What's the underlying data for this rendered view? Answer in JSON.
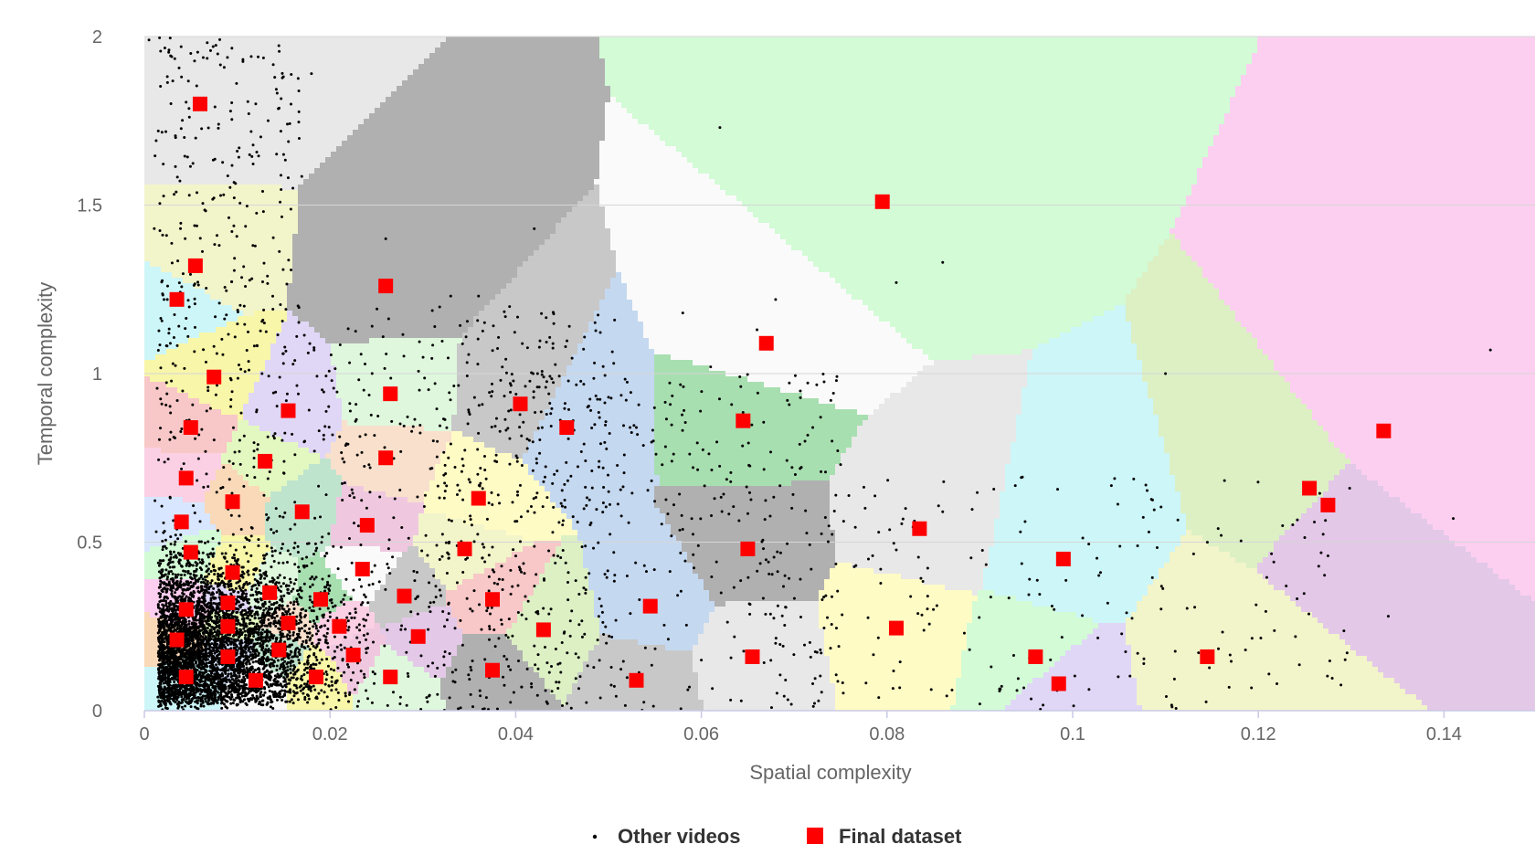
{
  "chart_data": {
    "type": "scatter",
    "xlabel": "Spatial complexity",
    "ylabel": "Temporal complexity",
    "xlim": [
      0,
      0.15
    ],
    "ylim": [
      0,
      2
    ],
    "x_ticks": [
      "0",
      "0.02",
      "0.04",
      "0.06",
      "0.08",
      "0.1",
      "0.12",
      "0.14"
    ],
    "x_tick_values": [
      0,
      0.02,
      0.04,
      0.06,
      0.08,
      0.1,
      0.12,
      0.14
    ],
    "y_ticks": [
      "0",
      "0.5",
      "1",
      "1.5",
      "2"
    ],
    "y_tick_values": [
      0,
      0.5,
      1,
      1.5,
      2
    ],
    "grid": "horizontal",
    "legend_position": "bottom",
    "background": "Voronoi cells around each Final dataset point",
    "series": [
      {
        "name": "Other videos",
        "marker": "dot",
        "color": "#000000",
        "density_note": "thousands of points, densest near x 0-0.04, y 0-0.8",
        "values": [
          [
            0.0005,
            1.99
          ],
          [
            0.005,
            1.95
          ],
          [
            0.018,
            1.89
          ],
          [
            0.004,
            1.88
          ],
          [
            0.01,
            1.66
          ],
          [
            0.012,
            1.8
          ],
          [
            0.0015,
            1.72
          ],
          [
            0.015,
            1.65
          ],
          [
            0.016,
            1.55
          ],
          [
            0.008,
            1.74
          ],
          [
            0.062,
            1.73
          ],
          [
            0.042,
            1.43
          ],
          [
            0.026,
            1.4
          ],
          [
            0.081,
            1.27
          ],
          [
            0.086,
            1.33
          ],
          [
            0.068,
            1.22
          ],
          [
            0.033,
            1.23
          ],
          [
            0.036,
            1.23
          ],
          [
            0.058,
            1.18
          ],
          [
            0.061,
            1.02
          ],
          [
            0.05,
            0.93
          ],
          [
            0.053,
            0.84
          ],
          [
            0.066,
            1.13
          ],
          [
            0.11,
            1.0
          ],
          [
            0.145,
            1.07
          ],
          [
            0.116,
            0.52
          ],
          [
            0.141,
            0.57
          ],
          [
            0.134,
            0.28
          ],
          [
            0.123,
            0.37
          ],
          [
            0.124,
            0.22
          ],
          [
            0.122,
            0.08
          ],
          [
            0.107,
            0.17
          ],
          [
            0.103,
            0.41
          ],
          [
            0.098,
            0.3
          ],
          [
            0.094,
            0.06
          ],
          [
            0.09,
            0.02
          ],
          [
            0.085,
            0.3
          ],
          [
            0.086,
            0.59
          ],
          [
            0.078,
            0.45
          ],
          [
            0.072,
            0.84
          ],
          [
            0.075,
            0.73
          ],
          [
            0.082,
            0.6
          ],
          [
            0.068,
            0.2
          ],
          [
            0.072,
            0.08
          ],
          [
            0.06,
            0.15
          ]
        ]
      },
      {
        "name": "Final dataset",
        "marker": "square",
        "color": "#ff0000",
        "values": [
          [
            0.006,
            1.8
          ],
          [
            0.0795,
            1.51
          ],
          [
            0.0055,
            1.32
          ],
          [
            0.026,
            1.26
          ],
          [
            0.0035,
            1.22
          ],
          [
            0.067,
            1.09
          ],
          [
            0.0075,
            0.99
          ],
          [
            0.0265,
            0.94
          ],
          [
            0.0405,
            0.91
          ],
          [
            0.0155,
            0.89
          ],
          [
            0.0645,
            0.86
          ],
          [
            0.005,
            0.84
          ],
          [
            0.0455,
            0.84
          ],
          [
            0.1335,
            0.83
          ],
          [
            0.026,
            0.75
          ],
          [
            0.013,
            0.74
          ],
          [
            0.0045,
            0.69
          ],
          [
            0.1255,
            0.66
          ],
          [
            0.036,
            0.63
          ],
          [
            0.1275,
            0.61
          ],
          [
            0.0095,
            0.62
          ],
          [
            0.017,
            0.59
          ],
          [
            0.004,
            0.56
          ],
          [
            0.024,
            0.55
          ],
          [
            0.0835,
            0.54
          ],
          [
            0.005,
            0.47
          ],
          [
            0.0345,
            0.48
          ],
          [
            0.065,
            0.48
          ],
          [
            0.099,
            0.45
          ],
          [
            0.0235,
            0.42
          ],
          [
            0.0095,
            0.41
          ],
          [
            0.0135,
            0.35
          ],
          [
            0.028,
            0.34
          ],
          [
            0.009,
            0.32
          ],
          [
            0.019,
            0.33
          ],
          [
            0.0375,
            0.33
          ],
          [
            0.0545,
            0.31
          ],
          [
            0.0045,
            0.3
          ],
          [
            0.0155,
            0.26
          ],
          [
            0.009,
            0.25
          ],
          [
            0.021,
            0.25
          ],
          [
            0.043,
            0.24
          ],
          [
            0.081,
            0.245
          ],
          [
            0.0295,
            0.22
          ],
          [
            0.0035,
            0.21
          ],
          [
            0.0145,
            0.18
          ],
          [
            0.009,
            0.16
          ],
          [
            0.0225,
            0.165
          ],
          [
            0.0655,
            0.16
          ],
          [
            0.096,
            0.16
          ],
          [
            0.1145,
            0.16
          ],
          [
            0.0375,
            0.12
          ],
          [
            0.0045,
            0.1
          ],
          [
            0.012,
            0.09
          ],
          [
            0.0185,
            0.1
          ],
          [
            0.0265,
            0.1
          ],
          [
            0.053,
            0.09
          ],
          [
            0.0985,
            0.08
          ]
        ]
      }
    ]
  }
}
